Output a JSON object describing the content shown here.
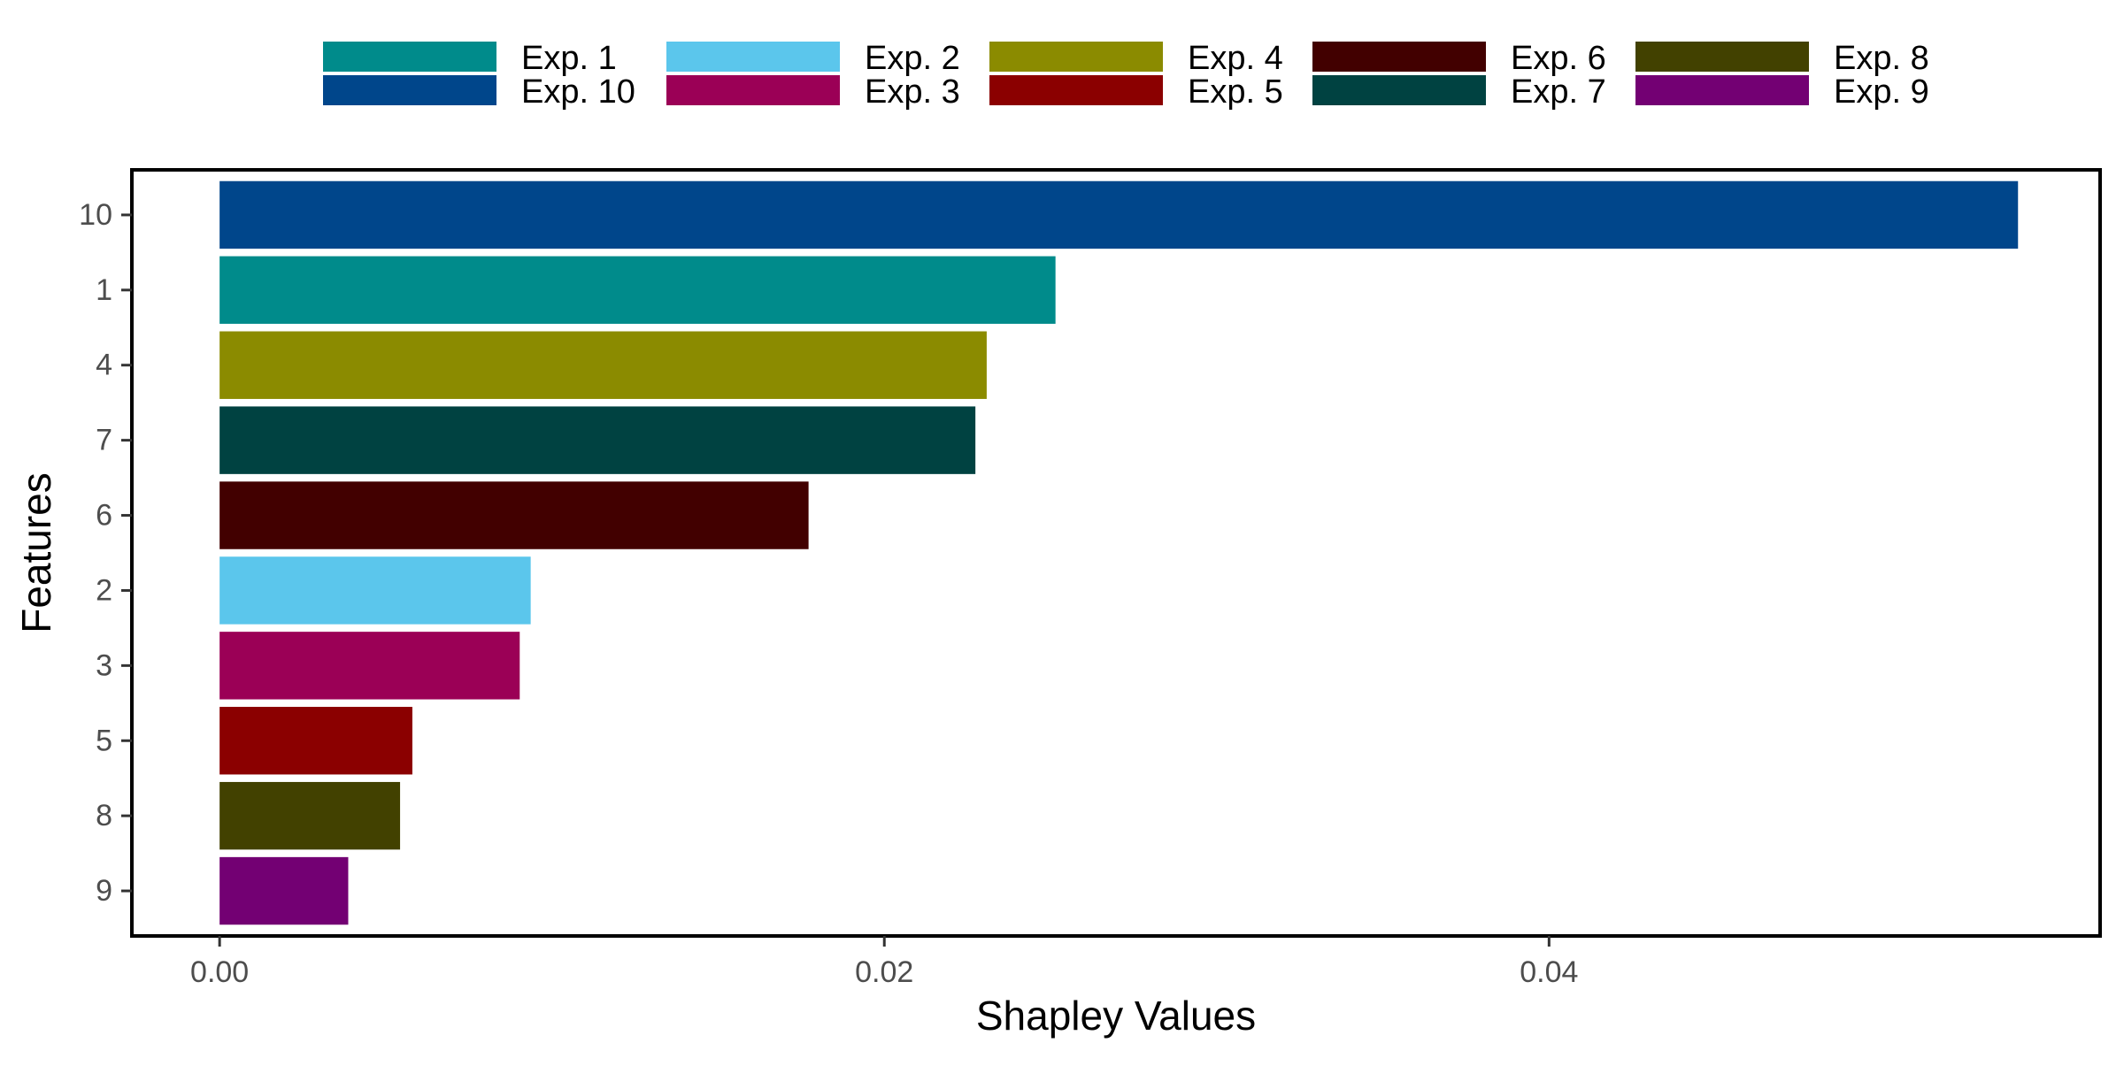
{
  "chart_data": {
    "type": "bar",
    "orientation": "horizontal",
    "xlabel": "Shapley Values",
    "ylabel": "Features",
    "xlim": [
      -0.00264,
      0.05658
    ],
    "x_ticks": [
      0.0,
      0.02,
      0.04
    ],
    "x_tick_labels": [
      "0.00",
      "0.02",
      "0.04"
    ],
    "grid": false,
    "legend_position": "top",
    "categories": [
      "10",
      "1",
      "4",
      "7",
      "6",
      "2",
      "3",
      "5",
      "8",
      "9"
    ],
    "values": [
      0.05411,
      0.02515,
      0.02308,
      0.02274,
      0.01772,
      0.00936,
      0.00903,
      0.0058,
      0.00543,
      0.00387
    ],
    "bar_series": [
      "Exp. 10",
      "Exp. 1",
      "Exp. 4",
      "Exp. 7",
      "Exp. 6",
      "Exp. 2",
      "Exp. 3",
      "Exp. 5",
      "Exp. 8",
      "Exp. 9"
    ],
    "legend": [
      {
        "label": "Exp. 1",
        "color": "#008B8B"
      },
      {
        "label": "Exp. 10",
        "color": "#00468B"
      },
      {
        "label": "Exp. 2",
        "color": "#5BC6EC"
      },
      {
        "label": "Exp. 3",
        "color": "#9B0056"
      },
      {
        "label": "Exp. 4",
        "color": "#8B8B00"
      },
      {
        "label": "Exp. 5",
        "color": "#8B0000"
      },
      {
        "label": "Exp. 6",
        "color": "#420000"
      },
      {
        "label": "Exp. 7",
        "color": "#004241"
      },
      {
        "label": "Exp. 8",
        "color": "#424100"
      },
      {
        "label": "Exp. 9",
        "color": "#730073"
      }
    ]
  }
}
